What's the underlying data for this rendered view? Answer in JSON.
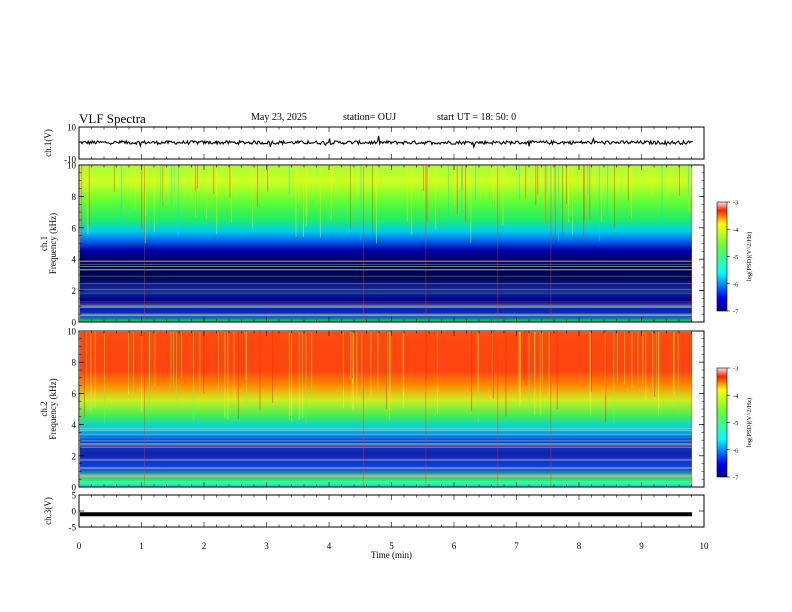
{
  "header": {
    "title": "VLF Spectra",
    "date": "May 23, 2025",
    "station": "station= OUJ",
    "start": "start  UT =   18: 50: 0"
  },
  "chart_data": [
    {
      "type": "line",
      "ylabel": "ch.1(V)",
      "ylim": [
        -10,
        10
      ],
      "yticks": [
        "10",
        "-10"
      ],
      "series": [
        {
          "values_summary": "noisy trace near 0 V with occasional spikes"
        }
      ]
    },
    {
      "type": "heatmap",
      "ylabel": "ch.1\nFrequency (kHz)",
      "ylim": [
        0,
        10
      ],
      "yticks": [
        "0",
        "2",
        "4",
        "6",
        "8",
        "10"
      ],
      "colorbar": {
        "label": "log(PSD)(V^2/Hz)",
        "range": [
          -7,
          -3
        ],
        "ticks": [
          "-3",
          "-4",
          "-5",
          "-6",
          "-7"
        ]
      }
    },
    {
      "type": "heatmap",
      "ylabel": "ch.2\nFrequency (kHz)",
      "ylim": [
        0,
        10
      ],
      "yticks": [
        "0",
        "2",
        "4",
        "6",
        "8",
        "10"
      ],
      "colorbar": {
        "label": "log(PSD)(V^2/Hz)",
        "range": [
          -7,
          -3
        ],
        "ticks": [
          "-3",
          "-4",
          "-5",
          "-6",
          "-7"
        ]
      }
    },
    {
      "type": "line",
      "ylabel": "ch.3(V)",
      "ylim": [
        -5,
        5
      ],
      "yticks": [
        "5",
        "0",
        "-5"
      ],
      "series": [
        {
          "values_summary": "constant at about -1 V"
        }
      ]
    }
  ],
  "xaxis": {
    "label": "Time (min)",
    "range": [
      0,
      10
    ],
    "ticks": [
      "0",
      "1",
      "2",
      "3",
      "4",
      "5",
      "6",
      "7",
      "8",
      "9",
      "10"
    ]
  },
  "colors": {
    "trace": "#000000",
    "spectrogram_ch1": "mostly green/yellow above 5 kHz, blue/navy below 5 kHz",
    "spectrogram_ch2": "mostly red/orange above 5 kHz, green/cyan/blue below"
  }
}
